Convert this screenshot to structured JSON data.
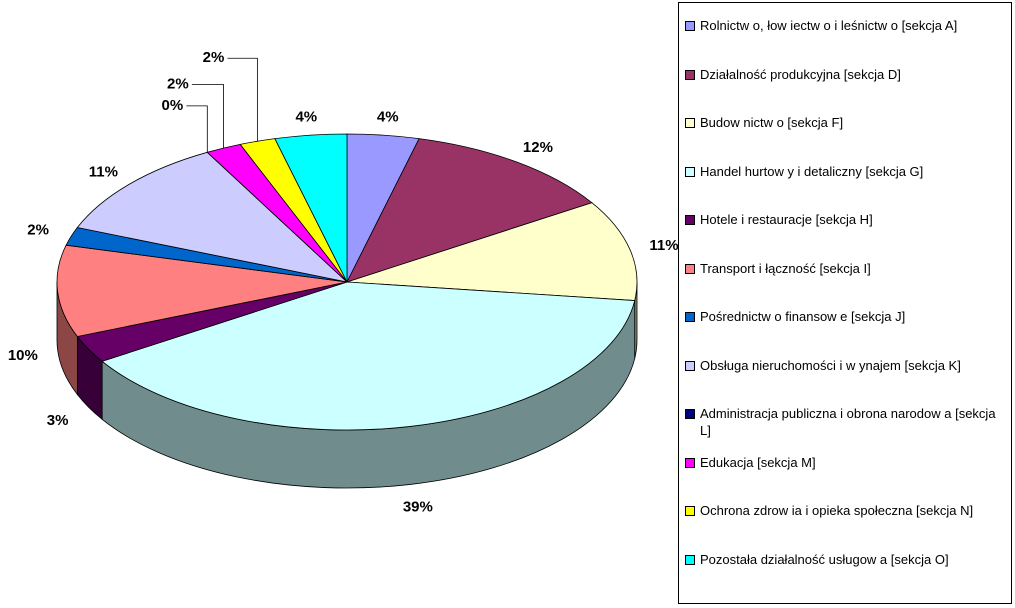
{
  "chart_data": {
    "type": "pie",
    "categories": [
      "Rolnictw o, łow iectw o i leśnictw o [sekcja A]",
      "Działalność produkcyjna [sekcja D]",
      "Budow nictw o [sekcja F]",
      "Handel hurtow y i detaliczny [sekcja G]",
      "Hotele i restauracje [sekcja H]",
      "Transport i łączność [sekcja I]",
      "Pośrednictw o finansow e [sekcja J]",
      "Obsługa nieruchomości i w ynajem [sekcja K]",
      "Administracja publiczna i obrona narodow a [sekcja L]",
      "Edukacja [sekcja M]",
      "Ochrona zdrow ia i opieka społeczna [sekcja N]",
      "Pozostała działalność usługow a [sekcja O]"
    ],
    "values": [
      4,
      12,
      11,
      39,
      3,
      10,
      2,
      11,
      0,
      2,
      2,
      4
    ],
    "value_labels": [
      "4%",
      "12%",
      "11%",
      "39%",
      "3%",
      "10%",
      "2%",
      "11%",
      "0%",
      "2%",
      "2%",
      "4%"
    ],
    "colors": [
      "#9999ff",
      "#993366",
      "#ffffcc",
      "#ccffff",
      "#660066",
      "#ff8080",
      "#0066cc",
      "#ccccff",
      "#000080",
      "#ff00ff",
      "#ffff00",
      "#00ffff"
    ],
    "legend": "right"
  }
}
